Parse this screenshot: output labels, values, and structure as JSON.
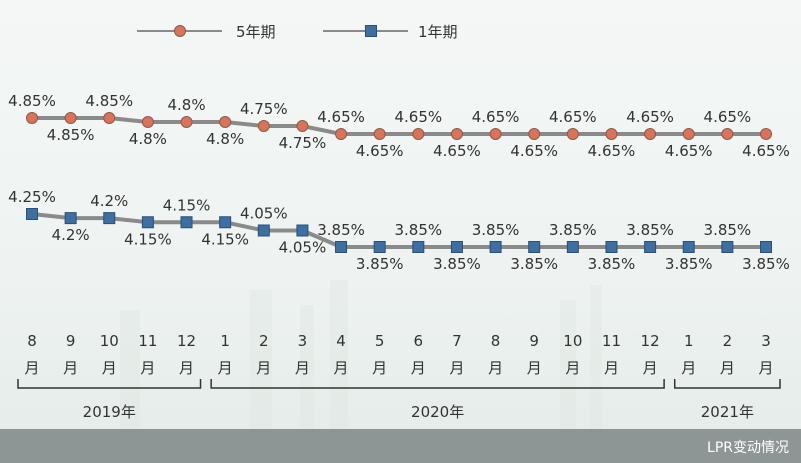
{
  "chart_data": {
    "type": "line",
    "categories": [
      "8\n月",
      "9\n月",
      "10\n月",
      "11\n月",
      "12\n月",
      "1\n月",
      "2\n月",
      "3\n月",
      "4\n月",
      "5\n月",
      "6\n月",
      "7\n月",
      "8\n月",
      "9\n月",
      "10\n月",
      "11\n月",
      "12\n月",
      "1\n月",
      "2\n月",
      "3\n月"
    ],
    "month_numbers": [
      "8",
      "9",
      "10",
      "11",
      "12",
      "1",
      "2",
      "3",
      "4",
      "5",
      "6",
      "7",
      "8",
      "9",
      "10",
      "11",
      "12",
      "1",
      "2",
      "3"
    ],
    "month_unit": "月",
    "series": [
      {
        "name": "5年期",
        "marker": "circle",
        "color": "#d9735a",
        "values": [
          4.85,
          4.85,
          4.85,
          4.8,
          4.8,
          4.8,
          4.75,
          4.75,
          4.65,
          4.65,
          4.65,
          4.65,
          4.65,
          4.65,
          4.65,
          4.65,
          4.65,
          4.65,
          4.65,
          4.65
        ],
        "labels": [
          "4.85%",
          "4.85%",
          "4.85%",
          "4.8%",
          "4.8%",
          "4.8%",
          "4.75%",
          "4.75%",
          "4.65%",
          "4.65%",
          "4.65%",
          "4.65%",
          "4.65%",
          "4.65%",
          "4.65%",
          "4.65%",
          "4.65%",
          "4.65%",
          "4.65%",
          "4.65%"
        ]
      },
      {
        "name": "1年期",
        "marker": "square",
        "color": "#3f6ea0",
        "values": [
          4.25,
          4.2,
          4.2,
          4.15,
          4.15,
          4.15,
          4.05,
          4.05,
          3.85,
          3.85,
          3.85,
          3.85,
          3.85,
          3.85,
          3.85,
          3.85,
          3.85,
          3.85,
          3.85,
          3.85
        ],
        "labels": [
          "4.25%",
          "4.2%",
          "4.2%",
          "4.15%",
          "4.15%",
          "4.15%",
          "4.05%",
          "4.05%",
          "3.85%",
          "3.85%",
          "3.85%",
          "3.85%",
          "3.85%",
          "3.85%",
          "3.85%",
          "3.85%",
          "3.85%",
          "3.85%",
          "3.85%",
          "3.85%"
        ]
      }
    ],
    "year_groups": [
      {
        "label": "2019年",
        "from": 0,
        "to": 4
      },
      {
        "label": "2020年",
        "from": 5,
        "to": 16
      },
      {
        "label": "2021年",
        "from": 17,
        "to": 19
      }
    ],
    "title": "",
    "xlabel": "",
    "ylabel": "",
    "legend_position": "top-left",
    "grid": false,
    "line_color": "#8a8a8a"
  },
  "caption": "LPR变动情况"
}
